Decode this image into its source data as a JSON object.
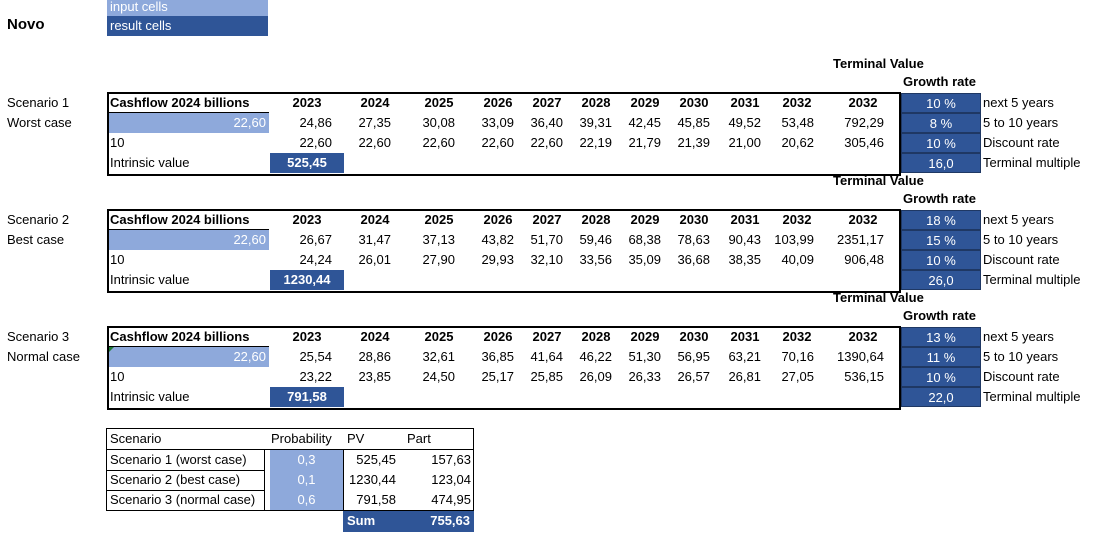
{
  "legend": {
    "input": "input cells",
    "result": "result cells"
  },
  "sheet_title": "Novo",
  "years": [
    "2023",
    "2024",
    "2025",
    "2026",
    "2027",
    "2028",
    "2029",
    "2030",
    "2031",
    "2032",
    "2032"
  ],
  "terminal_value_label": "Terminal Value",
  "growth_rate_label": "Growth rate",
  "rate_labels": [
    "next 5 years",
    "5 to 10 years",
    "Discount rate",
    "Terminal multiple"
  ],
  "row_labels": {
    "cashflow": "Cashflow 2024 billions",
    "discount": "10",
    "intrinsic": "Intrinsic value"
  },
  "scenarios": [
    {
      "name": "Scenario 1",
      "case": "Worst case",
      "cashflow_input": "22,60",
      "projected": [
        "24,86",
        "27,35",
        "30,08",
        "33,09",
        "36,40",
        "39,31",
        "42,45",
        "45,85",
        "49,52",
        "53,48",
        "792,29"
      ],
      "discounted": [
        "22,60",
        "22,60",
        "22,60",
        "22,60",
        "22,60",
        "22,19",
        "21,79",
        "21,39",
        "21,00",
        "20,62",
        "305,46"
      ],
      "intrinsic_value": "525,45",
      "rates": [
        "10 %",
        "8 %",
        "10 %",
        "16,0"
      ]
    },
    {
      "name": "Scenario 2",
      "case": "Best case",
      "cashflow_input": "22,60",
      "projected": [
        "26,67",
        "31,47",
        "37,13",
        "43,82",
        "51,70",
        "59,46",
        "68,38",
        "78,63",
        "90,43",
        "103,99",
        "2351,17"
      ],
      "discounted": [
        "24,24",
        "26,01",
        "27,90",
        "29,93",
        "32,10",
        "33,56",
        "35,09",
        "36,68",
        "38,35",
        "40,09",
        "906,48"
      ],
      "intrinsic_value": "1230,44",
      "rates": [
        "18 %",
        "15 %",
        "10 %",
        "26,0"
      ]
    },
    {
      "name": "Scenario 3",
      "case": "Normal case",
      "cashflow_input": "22,60",
      "projected": [
        "25,54",
        "28,86",
        "32,61",
        "36,85",
        "41,64",
        "46,22",
        "51,30",
        "56,95",
        "63,21",
        "70,16",
        "1390,64"
      ],
      "discounted": [
        "23,22",
        "23,85",
        "24,50",
        "25,17",
        "25,85",
        "26,09",
        "26,33",
        "26,57",
        "26,81",
        "27,05",
        "536,15"
      ],
      "intrinsic_value": "791,58",
      "rates": [
        "13 %",
        "11 %",
        "10 %",
        "22,0"
      ]
    }
  ],
  "summary": {
    "headers": [
      "Scenario",
      "Probability",
      "PV",
      "Part"
    ],
    "rows": [
      {
        "scenario": "Scenario 1 (worst case)",
        "probability": "0,3",
        "pv": "525,45",
        "part": "157,63"
      },
      {
        "scenario": "Scenario 2 (best case)",
        "probability": "0,1",
        "pv": "1230,44",
        "part": "123,04"
      },
      {
        "scenario": "Scenario 3 (normal case)",
        "probability": "0,6",
        "pv": "791,58",
        "part": "474,95"
      }
    ],
    "sum_label": "Sum",
    "sum_value": "755,63"
  },
  "colors": {
    "input": "#8ea9db",
    "result": "#2f5597",
    "comment_marker": "#1e7b34"
  }
}
